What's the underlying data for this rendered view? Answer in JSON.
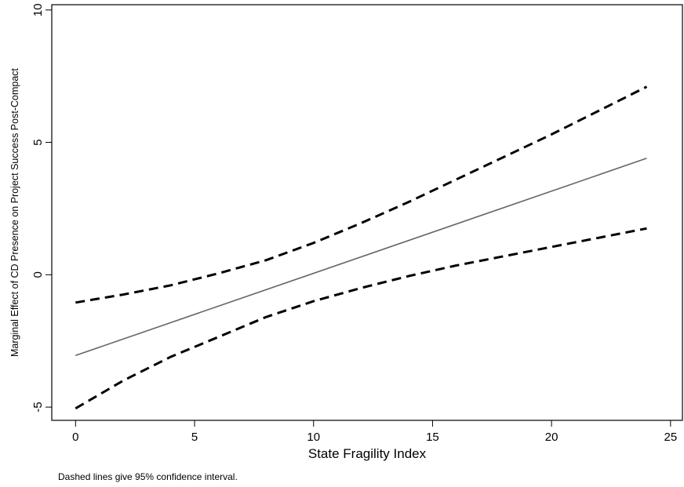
{
  "chart_data": {
    "type": "line",
    "title": "",
    "xlabel": "State Fragility Index",
    "ylabel": "Marginal Effect of CD Presence on Project Success Post-Compact",
    "note": "Dashed lines give 95% confidence interval.",
    "xlim": [
      -1,
      25.5
    ],
    "ylim": [
      -5.5,
      10.2
    ],
    "xticks": [
      0,
      5,
      10,
      15,
      20,
      25
    ],
    "yticks": [
      -5,
      0,
      5,
      10
    ],
    "xtick_labels": [
      "0",
      "5",
      "10",
      "15",
      "20",
      "25"
    ],
    "ytick_labels": [
      "-5",
      "0",
      "5",
      "10"
    ],
    "grid": false,
    "series": [
      {
        "style": "solid",
        "color": "#666666",
        "x": [
          0,
          24
        ],
        "y": [
          -3.05,
          4.4
        ]
      },
      {
        "style": "dashed",
        "color": "#000000",
        "x": [
          0,
          2,
          4,
          6,
          8,
          10,
          12,
          14,
          16,
          18,
          20,
          22,
          24
        ],
        "y": [
          -1.05,
          -0.75,
          -0.4,
          0.05,
          0.55,
          1.2,
          1.95,
          2.75,
          3.6,
          4.45,
          5.3,
          6.2,
          7.1
        ]
      },
      {
        "style": "dashed",
        "color": "#000000",
        "x": [
          0,
          2,
          4,
          6,
          8,
          10,
          12,
          14,
          16,
          18,
          20,
          22,
          24
        ],
        "y": [
          -5.05,
          -4.0,
          -3.1,
          -2.35,
          -1.6,
          -1.0,
          -0.5,
          -0.05,
          0.35,
          0.7,
          1.05,
          1.4,
          1.75
        ]
      }
    ]
  }
}
